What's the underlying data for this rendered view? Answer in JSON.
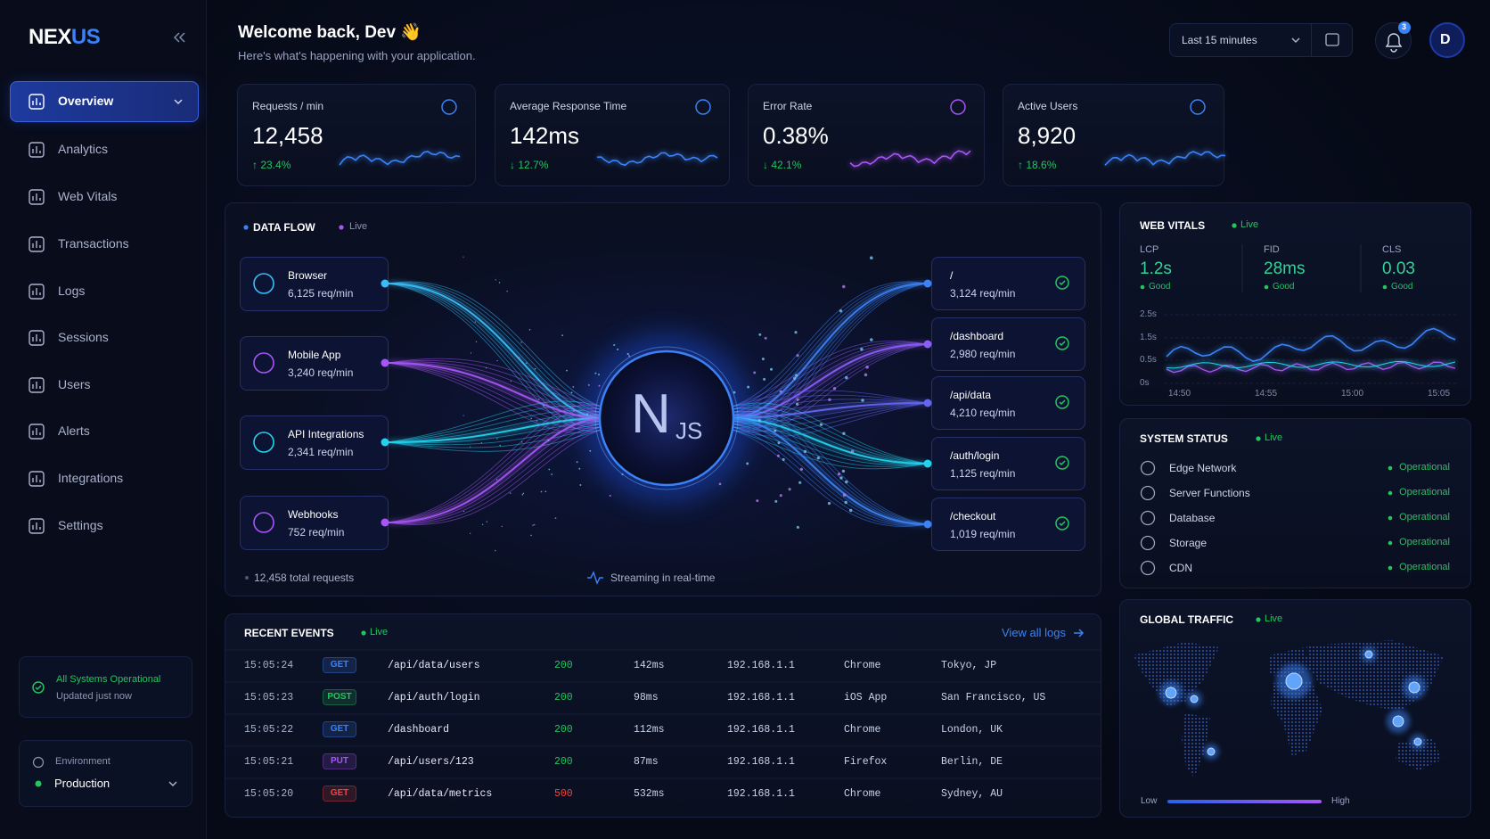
{
  "sidebar": {
    "brand": {
      "main": "NEX",
      "accent": "US"
    },
    "active_index": 0,
    "nav": [
      {
        "label": "Overview"
      },
      {
        "label": "Analytics"
      },
      {
        "label": "Web Vitals"
      },
      {
        "label": "Transactions"
      },
      {
        "label": "Logs"
      },
      {
        "label": "Sessions"
      },
      {
        "label": "Users"
      },
      {
        "label": "Alerts"
      },
      {
        "label": "Integrations"
      },
      {
        "label": "Settings"
      }
    ],
    "status": {
      "title": "All Systems Operational",
      "subtitle": "Updated just now"
    },
    "environment": {
      "label": "Environment",
      "value": "Production"
    }
  },
  "header": {
    "title": "Welcome back, Dev 👋",
    "subtitle": "Here's what's happening with your application.",
    "time_range": "Last 15 minutes",
    "notifications": 3,
    "avatar": "D"
  },
  "kpis": [
    {
      "label": "Requests / min",
      "value": "12,458",
      "change": "↑ 23.4%",
      "color": "#3b82f6"
    },
    {
      "label": "Average Response Time",
      "value": "142ms",
      "change": "↓ 12.7%",
      "color": "#3b82f6"
    },
    {
      "label": "Error Rate",
      "value": "0.38%",
      "change": "↓ 42.1%",
      "color": "#a855f7"
    },
    {
      "label": "Active Users",
      "value": "8,920",
      "change": "↑ 18.6%",
      "color": "#3b82f6"
    }
  ],
  "data_flow": {
    "title": "DATA FLOW",
    "live": "Live",
    "logo_main": "N",
    "logo_sub": "JS",
    "sources": [
      {
        "name": "Browser",
        "rate": "6,125 req/min",
        "color": "#38bdf8"
      },
      {
        "name": "Mobile App",
        "rate": "3,240 req/min",
        "color": "#a855f7"
      },
      {
        "name": "API Integrations",
        "rate": "2,341 req/min",
        "color": "#22d3ee"
      },
      {
        "name": "Webhooks",
        "rate": "752 req/min",
        "color": "#a855f7"
      }
    ],
    "routes": [
      {
        "path": "/",
        "rate": "3,124 req/min",
        "color": "#3b82f6"
      },
      {
        "path": "/dashboard",
        "rate": "2,980 req/min",
        "color": "#8b5cf6"
      },
      {
        "path": "/api/data",
        "rate": "4,210 req/min",
        "color": "#6366f1"
      },
      {
        "path": "/auth/login",
        "rate": "1,125 req/min",
        "color": "#22d3ee"
      },
      {
        "path": "/checkout",
        "rate": "1,019 req/min",
        "color": "#3b82f6"
      }
    ],
    "total": "12,458 total requests",
    "streaming": "Streaming in real-time"
  },
  "web_vitals": {
    "title": "WEB VITALS",
    "live": "Live",
    "metrics": [
      {
        "label": "LCP",
        "value": "1.2s",
        "status": "Good"
      },
      {
        "label": "FID",
        "value": "28ms",
        "status": "Good"
      },
      {
        "label": "CLS",
        "value": "0.03",
        "status": "Good"
      }
    ],
    "y_labels": [
      "2.5s",
      "1.5s",
      "0.5s",
      "0s"
    ],
    "x_labels": [
      "14:50",
      "14:55",
      "15:00",
      "15:05"
    ]
  },
  "system_status": {
    "title": "SYSTEM STATUS",
    "live": "Live",
    "items": [
      {
        "name": "Edge Network",
        "status": "Operational"
      },
      {
        "name": "Server Functions",
        "status": "Operational"
      },
      {
        "name": "Database",
        "status": "Operational"
      },
      {
        "name": "Storage",
        "status": "Operational"
      },
      {
        "name": "CDN",
        "status": "Operational"
      }
    ]
  },
  "global_traffic": {
    "title": "GLOBAL TRAFFIC",
    "live": "Live",
    "low": "Low",
    "high": "High"
  },
  "events": {
    "title": "RECENT EVENTS",
    "live": "Live",
    "link": "View all logs",
    "rows": [
      {
        "time": "15:05:24",
        "method": "GET",
        "method_color": "#3b82f6",
        "path": "/api/data/users",
        "status": 200,
        "status_color": "#22c55e",
        "duration": "142ms",
        "ip": "192.168.1.1",
        "client": "Chrome",
        "location": "Tokyo, JP"
      },
      {
        "time": "15:05:23",
        "method": "POST",
        "method_color": "#22c55e",
        "path": "/api/auth/login",
        "status": 200,
        "status_color": "#22c55e",
        "duration": "98ms",
        "ip": "192.168.1.1",
        "client": "iOS App",
        "location": "San Francisco, US"
      },
      {
        "time": "15:05:22",
        "method": "GET",
        "method_color": "#3b82f6",
        "path": "/dashboard",
        "status": 200,
        "status_color": "#22c55e",
        "duration": "112ms",
        "ip": "192.168.1.1",
        "client": "Chrome",
        "location": "London, UK"
      },
      {
        "time": "15:05:21",
        "method": "PUT",
        "method_color": "#a855f7",
        "path": "/api/users/123",
        "status": 200,
        "status_color": "#22c55e",
        "duration": "87ms",
        "ip": "192.168.1.1",
        "client": "Firefox",
        "location": "Berlin, DE"
      },
      {
        "time": "15:05:20",
        "method": "GET",
        "method_color": "#ef4444",
        "path": "/api/data/metrics",
        "status": 500,
        "status_color": "#ef4444",
        "duration": "532ms",
        "ip": "192.168.1.1",
        "client": "Chrome",
        "location": "Sydney, AU"
      }
    ]
  }
}
